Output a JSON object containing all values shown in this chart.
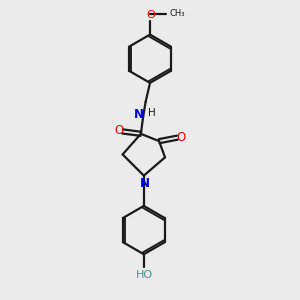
{
  "bg_color": "#ebebeb",
  "bond_color": "#1a1a1a",
  "N_color": "#0000ee",
  "O_color": "#ee0000",
  "teal_color": "#4a9090",
  "line_width": 1.6,
  "fig_size": [
    3.0,
    3.0
  ],
  "dpi": 100,
  "xlim": [
    0,
    10
  ],
  "ylim": [
    0,
    10
  ]
}
